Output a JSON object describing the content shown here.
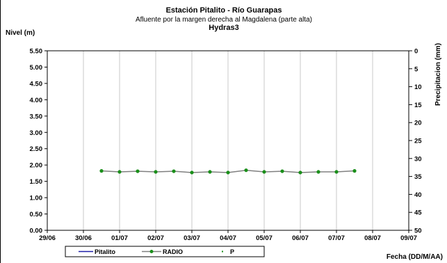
{
  "chart_data": {
    "type": "line",
    "title": "Estación Pitalito  - Río Guarapas",
    "subtitle": "Afluente por la margen derecha al Magdalena (parte alta)",
    "subtitle2": "Hydras3",
    "ylabel": "Nivel (m)",
    "y2label": "Precipitacion (mm)",
    "xlabel": "Fecha (DD/M/AA)",
    "ylim": [
      0,
      5.5
    ],
    "y2lim": [
      0,
      50
    ],
    "y2_reversed": true,
    "x_ticks": [
      "29/06",
      "30/06",
      "01/07",
      "02/07",
      "03/07",
      "04/07",
      "05/07",
      "06/07",
      "07/07",
      "08/07",
      "09/07"
    ],
    "y_ticks": [
      "0.00",
      "0.50",
      "1.00",
      "1.50",
      "2.00",
      "2.50",
      "3.00",
      "3.50",
      "4.00",
      "4.50",
      "5.00",
      "5.50"
    ],
    "y2_ticks": [
      "0",
      "5",
      "10",
      "15",
      "20",
      "25",
      "30",
      "35",
      "40",
      "45",
      "50"
    ],
    "grid": "vertical",
    "legend_position": "bottom",
    "series": [
      {
        "name": "Pitalito",
        "color": "#1f1fa8",
        "x": [],
        "y": []
      },
      {
        "name": "RADIO",
        "color": "#808080",
        "marker_color": "#1a8f1a",
        "x": [
          "30/06 12:00",
          "01/07 00:00",
          "01/07 12:00",
          "02/07 00:00",
          "02/07 12:00",
          "03/07 00:00",
          "03/07 12:00",
          "04/07 00:00",
          "04/07 12:00",
          "05/07 00:00",
          "05/07 12:00",
          "06/07 00:00",
          "06/07 12:00",
          "07/07 00:00",
          "07/07 12:00"
        ],
        "y": [
          1.82,
          1.79,
          1.81,
          1.79,
          1.81,
          1.77,
          1.79,
          1.77,
          1.84,
          1.79,
          1.81,
          1.77,
          1.79,
          1.79,
          1.82
        ]
      },
      {
        "name": "P",
        "color": "#1a8f1a",
        "x": [],
        "y": []
      }
    ]
  }
}
